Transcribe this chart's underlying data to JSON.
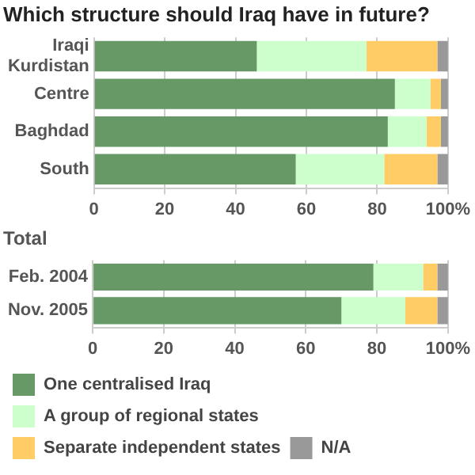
{
  "chart_data": [
    {
      "type": "bar",
      "orientation": "horizontal",
      "stacked": true,
      "title": "Which structure should Iraq have in future?",
      "categories": [
        "Iraqi Kurdistan",
        "Centre",
        "Baghdad",
        "South"
      ],
      "series": [
        {
          "color": "#669966",
          "values": [
            46,
            85,
            83,
            57
          ]
        },
        {
          "color": "#ccffcc",
          "values": [
            31,
            10,
            11,
            25
          ]
        },
        {
          "color": "#ffcc66",
          "values": [
            20,
            3,
            4,
            15
          ]
        },
        {
          "color": "#999999",
          "values": [
            3,
            2,
            2,
            3
          ]
        }
      ],
      "xlim": [
        0,
        100
      ],
      "xticks": [
        0,
        20,
        40,
        60,
        80,
        {
          "value": 100,
          "label": "100%"
        }
      ],
      "grid": "x",
      "legend": false
    },
    {
      "type": "bar",
      "orientation": "horizontal",
      "stacked": true,
      "title": "Total",
      "categories": [
        "Feb. 2004",
        "Nov. 2005"
      ],
      "series": [
        {
          "name": "One centralised Iraq",
          "color": "#669966",
          "values": [
            79,
            70
          ]
        },
        {
          "name": "A group of regional states",
          "color": "#ccffcc",
          "values": [
            14,
            18
          ]
        },
        {
          "name": "Separate independent states",
          "color": "#ffcc66",
          "values": [
            4,
            9
          ]
        },
        {
          "name": "N/A",
          "color": "#999999",
          "values": [
            3,
            3
          ]
        }
      ],
      "xlim": [
        0,
        100
      ],
      "xticks": [
        0,
        20,
        40,
        60,
        80,
        {
          "value": 100,
          "label": "100%"
        }
      ],
      "grid": "x",
      "legend": "bottom"
    }
  ]
}
